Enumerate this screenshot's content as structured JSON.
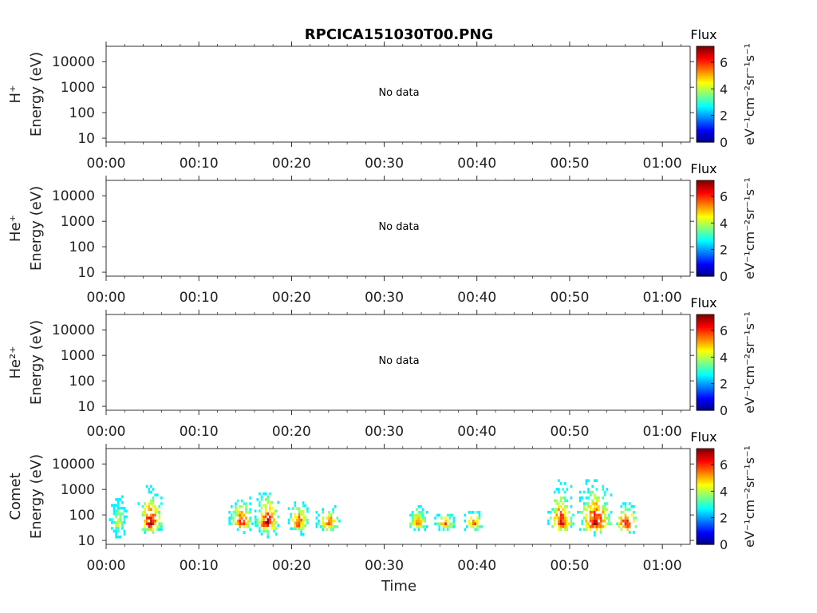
{
  "title": "RPCICA151030T00.PNG",
  "xlabel": "Time",
  "x_ticks": [
    "00:00",
    "00:10",
    "00:20",
    "00:30",
    "00:40",
    "00:50",
    "01:00"
  ],
  "y_ticks": [
    "10",
    "100",
    "1000",
    "10000"
  ],
  "colorbar": {
    "title": "Flux",
    "ticks": [
      "0",
      "2",
      "4",
      "6"
    ],
    "unit": "eV⁻¹cm⁻²sr⁻¹s⁻¹",
    "range": [
      0,
      7.2
    ],
    "colormap": "jet"
  },
  "chart_data": [
    {
      "type": "heatmap",
      "ylabel_species": "H⁺",
      "ylabel": "Energy (eV)",
      "annotation": "No data",
      "x_range_min": [
        0,
        63
      ],
      "y_scale": "log",
      "ylim": [
        7,
        40000
      ],
      "blobs": []
    },
    {
      "type": "heatmap",
      "ylabel_species": "He⁺",
      "ylabel": "Energy (eV)",
      "annotation": "No data",
      "x_range_min": [
        0,
        63
      ],
      "y_scale": "log",
      "ylim": [
        7,
        40000
      ],
      "blobs": []
    },
    {
      "type": "heatmap",
      "ylabel_species": "He²⁺",
      "ylabel": "Energy (eV)",
      "annotation": "No data",
      "x_range_min": [
        0,
        63
      ],
      "y_scale": "log",
      "ylim": [
        7,
        40000
      ],
      "blobs": []
    },
    {
      "type": "heatmap",
      "ylabel_species": "Comet",
      "ylabel": "Energy (eV)",
      "annotation": "",
      "x_range_min": [
        0,
        63
      ],
      "y_scale": "log",
      "ylim": [
        7,
        40000
      ],
      "blobs": [
        {
          "t": [
            0.3,
            2.2
          ],
          "e": [
            12,
            600
          ],
          "peak": 4.5
        },
        {
          "t": [
            3.4,
            6.0
          ],
          "e": [
            14,
            1200
          ],
          "peak": 7.0
        },
        {
          "t": [
            13.2,
            15.8
          ],
          "e": [
            18,
            800
          ],
          "peak": 6.3
        },
        {
          "t": [
            16.0,
            18.6
          ],
          "e": [
            12,
            1000
          ],
          "peak": 7.0
        },
        {
          "t": [
            19.6,
            21.8
          ],
          "e": [
            15,
            500
          ],
          "peak": 6.3
        },
        {
          "t": [
            22.6,
            25.2
          ],
          "e": [
            18,
            200
          ],
          "peak": 6.5
        },
        {
          "t": [
            32.5,
            34.6
          ],
          "e": [
            18,
            300
          ],
          "peak": 5.8
        },
        {
          "t": [
            35.4,
            37.6
          ],
          "e": [
            18,
            130
          ],
          "peak": 6.0
        },
        {
          "t": [
            38.6,
            40.6
          ],
          "e": [
            18,
            160
          ],
          "peak": 6.0
        },
        {
          "t": [
            47.6,
            50.4
          ],
          "e": [
            14,
            2000
          ],
          "peak": 6.6
        },
        {
          "t": [
            50.8,
            54.6
          ],
          "e": [
            14,
            2500
          ],
          "peak": 6.8
        },
        {
          "t": [
            54.8,
            57.2
          ],
          "e": [
            14,
            350
          ],
          "peak": 6.8
        }
      ]
    }
  ]
}
